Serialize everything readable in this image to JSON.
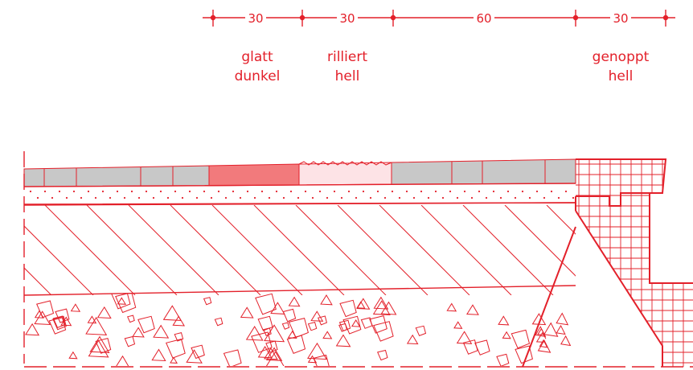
{
  "colors": {
    "line": "#e3202a",
    "paving_grey": "#c8c8c8",
    "paving_dark_red": "#f27a7c",
    "paving_light_pink": "#fde3e6"
  },
  "dimensions": {
    "segments": [
      {
        "value": "30"
      },
      {
        "value": "30"
      },
      {
        "value": "60"
      },
      {
        "value": "30"
      }
    ]
  },
  "labels": {
    "zone1": {
      "line1": "glatt",
      "line2": "dunkel"
    },
    "zone2": {
      "line1": "rilliert",
      "line2": "hell"
    },
    "zone3": {
      "line1": "genoppt",
      "line2": "hell"
    }
  }
}
